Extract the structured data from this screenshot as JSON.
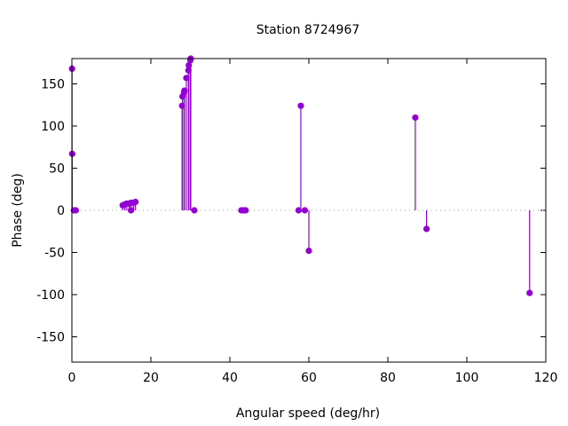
{
  "chart_data": {
    "type": "scatter",
    "style": "impulses-with-points",
    "title": "Station 8724967",
    "xlabel": "Angular speed (deg/hr)",
    "ylabel": "Phase (deg)",
    "xlim": [
      0,
      120
    ],
    "ylim": [
      -180,
      180
    ],
    "xticks": [
      0,
      20,
      40,
      60,
      80,
      100,
      120
    ],
    "yticks": [
      -150,
      -100,
      -50,
      0,
      50,
      100,
      150
    ],
    "zero_line": true,
    "color": "#9400d3",
    "series": [
      {
        "name": "phase",
        "points": [
          [
            0.04,
            168
          ],
          [
            0.08,
            67
          ],
          [
            0.5,
            0
          ],
          [
            1.0,
            0
          ],
          [
            12.85,
            6
          ],
          [
            13.4,
            7
          ],
          [
            13.9,
            8
          ],
          [
            14.5,
            8
          ],
          [
            14.96,
            0
          ],
          [
            15.0,
            9
          ],
          [
            15.6,
            9
          ],
          [
            16.1,
            10
          ],
          [
            27.9,
            124
          ],
          [
            28.0,
            135
          ],
          [
            28.4,
            140
          ],
          [
            28.5,
            142
          ],
          [
            28.98,
            157
          ],
          [
            29.5,
            166
          ],
          [
            29.6,
            172
          ],
          [
            30.0,
            178
          ],
          [
            30.1,
            180
          ],
          [
            31.0,
            0
          ],
          [
            42.9,
            0
          ],
          [
            43.5,
            0
          ],
          [
            44.0,
            0
          ],
          [
            57.4,
            0
          ],
          [
            57.97,
            124
          ],
          [
            58.98,
            0
          ],
          [
            60.0,
            -48
          ],
          [
            86.95,
            110
          ],
          [
            89.8,
            -22
          ],
          [
            115.9,
            -98
          ]
        ]
      }
    ]
  }
}
